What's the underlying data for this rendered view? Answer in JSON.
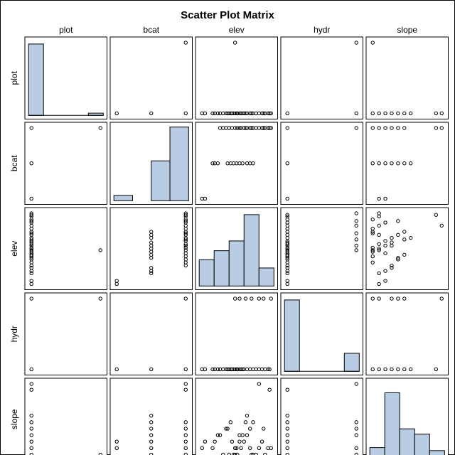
{
  "chart_data": {
    "type": "scatter_matrix",
    "title": "Scatter Plot Matrix",
    "variables": [
      "plot",
      "bcat",
      "elev",
      "hydr",
      "slope"
    ],
    "grid": false,
    "colors": {
      "bar_fill": "#b8cce4",
      "bar_stroke": "#000000",
      "marker_stroke": "#000000",
      "frame": "#000000",
      "background": "#ffffff"
    },
    "histograms": {
      "plot": [
        0.95,
        0.0,
        0.0,
        0.0,
        0.03
      ],
      "bcat": [
        0.07,
        0.0,
        0.53,
        0.98
      ],
      "elev": [
        0.35,
        0.47,
        0.6,
        0.95,
        0.24
      ],
      "hydr": [
        0.95,
        0.0,
        0.0,
        0.0,
        0.24
      ],
      "slope": [
        0.12,
        0.85,
        0.37,
        0.3,
        0.08
      ]
    },
    "observations": [
      {
        "plot": 0,
        "bcat": 3,
        "elev": 0.53,
        "hydr": 0,
        "slope": 0.0
      },
      {
        "plot": 0,
        "bcat": 3,
        "elev": 0.58,
        "hydr": 0,
        "slope": 0.09
      },
      {
        "plot": 0,
        "bcat": 3,
        "elev": 0.62,
        "hydr": 0,
        "slope": 0.18
      },
      {
        "plot": 0,
        "bcat": 3,
        "elev": 0.66,
        "hydr": 0,
        "slope": 0.27
      },
      {
        "plot": 0,
        "bcat": 3,
        "elev": 0.7,
        "hydr": 0,
        "slope": 0.36
      },
      {
        "plot": 0,
        "bcat": 3,
        "elev": 0.74,
        "hydr": 0,
        "slope": 0.45
      },
      {
        "plot": 0,
        "bcat": 3,
        "elev": 0.78,
        "hydr": 0,
        "slope": 0.0
      },
      {
        "plot": 0,
        "bcat": 3,
        "elev": 0.82,
        "hydr": 0,
        "slope": 0.09
      },
      {
        "plot": 0,
        "bcat": 3,
        "elev": 0.86,
        "hydr": 0,
        "slope": 0.18
      },
      {
        "plot": 0,
        "bcat": 3,
        "elev": 0.9,
        "hydr": 0,
        "slope": 0.0
      },
      {
        "plot": 0,
        "bcat": 3,
        "elev": 0.94,
        "hydr": 0,
        "slope": 0.09
      },
      {
        "plot": 0,
        "bcat": 3,
        "elev": 0.3,
        "hydr": 0,
        "slope": 0.27
      },
      {
        "plot": 0,
        "bcat": 3,
        "elev": 0.34,
        "hydr": 0,
        "slope": 0.0
      },
      {
        "plot": 0,
        "bcat": 3,
        "elev": 0.38,
        "hydr": 0,
        "slope": 0.36
      },
      {
        "plot": 0,
        "bcat": 3,
        "elev": 0.42,
        "hydr": 0,
        "slope": 0.0
      },
      {
        "plot": 0,
        "bcat": 3,
        "elev": 0.46,
        "hydr": 0,
        "slope": 0.18
      },
      {
        "plot": 0,
        "bcat": 3,
        "elev": 0.5,
        "hydr": 0,
        "slope": 0.09
      },
      {
        "plot": 0,
        "bcat": 3,
        "elev": 0.56,
        "hydr": 1,
        "slope": 0.27
      },
      {
        "plot": 0,
        "bcat": 3,
        "elev": 0.64,
        "hydr": 1,
        "slope": 0.45
      },
      {
        "plot": 0,
        "bcat": 3,
        "elev": 0.72,
        "hydr": 1,
        "slope": 0.0
      },
      {
        "plot": 0,
        "bcat": 3,
        "elev": 0.88,
        "hydr": 1,
        "slope": 0.36
      },
      {
        "plot": 0,
        "bcat": 3,
        "elev": 0.98,
        "hydr": 1,
        "slope": 0.09
      },
      {
        "plot": 0,
        "bcat": 3,
        "elev": 0.96,
        "hydr": 0,
        "slope": 0.9
      },
      {
        "plot": 0,
        "bcat": 3,
        "elev": 0.82,
        "hydr": 1,
        "slope": 0.98
      },
      {
        "plot": 0,
        "bcat": 2,
        "elev": 0.2,
        "hydr": 0,
        "slope": 0.09
      },
      {
        "plot": 0,
        "bcat": 2,
        "elev": 0.23,
        "hydr": 0,
        "slope": 0.18
      },
      {
        "plot": 0,
        "bcat": 2,
        "elev": 0.27,
        "hydr": 0,
        "slope": 0.27
      },
      {
        "plot": 0,
        "bcat": 2,
        "elev": 0.4,
        "hydr": 0,
        "slope": 0.36
      },
      {
        "plot": 0,
        "bcat": 2,
        "elev": 0.44,
        "hydr": 0,
        "slope": 0.45
      },
      {
        "plot": 0,
        "bcat": 2,
        "elev": 0.48,
        "hydr": 0,
        "slope": 0.0
      },
      {
        "plot": 0,
        "bcat": 2,
        "elev": 0.52,
        "hydr": 0,
        "slope": 0.09
      },
      {
        "plot": 0,
        "bcat": 2,
        "elev": 0.56,
        "hydr": 0,
        "slope": 0.18
      },
      {
        "plot": 0,
        "bcat": 2,
        "elev": 0.6,
        "hydr": 0,
        "slope": 0.27
      },
      {
        "plot": 0,
        "bcat": 2,
        "elev": 0.66,
        "hydr": 0,
        "slope": 0.54
      },
      {
        "plot": 0,
        "bcat": 2,
        "elev": 0.7,
        "hydr": 0,
        "slope": 0.09
      },
      {
        "plot": 0,
        "bcat": 2,
        "elev": 0.74,
        "hydr": 0,
        "slope": 0.0
      },
      {
        "plot": 0,
        "bcat": 1,
        "elev": 0.06,
        "hydr": 0,
        "slope": 0.09
      },
      {
        "plot": 0,
        "bcat": 1,
        "elev": 0.1,
        "hydr": 0,
        "slope": 0.18
      },
      {
        "plot": 1,
        "bcat": 3,
        "elev": 0.5,
        "hydr": 1,
        "slope": 0.0
      }
    ]
  }
}
